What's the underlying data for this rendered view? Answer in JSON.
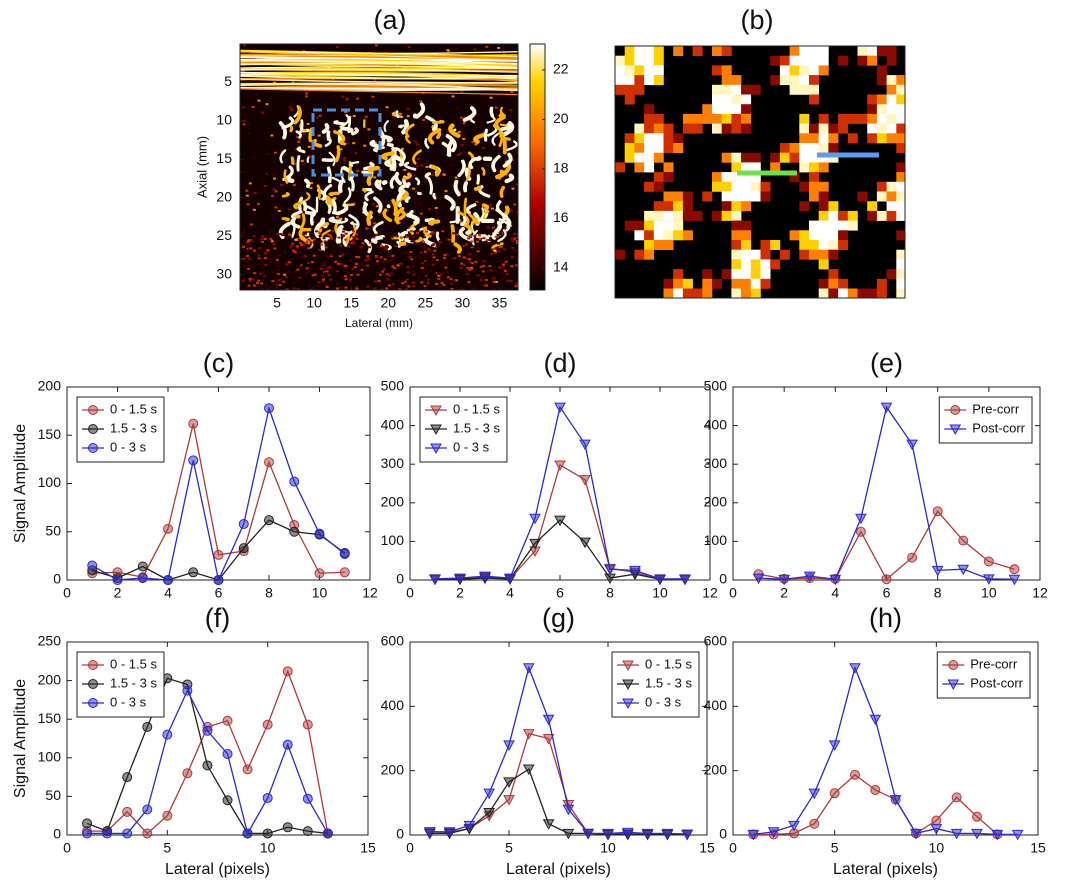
{
  "chart_data": [
    {
      "type": "image",
      "title": "(a)",
      "xlabel": "Lateral (mm)",
      "ylabel": "Axial (mm)",
      "xlim": [
        0,
        37.5
      ],
      "xticks": [
        5,
        10,
        15,
        20,
        25,
        30,
        35
      ],
      "ylim": [
        0,
        32
      ],
      "yticks": [
        5,
        10,
        15,
        20,
        25,
        30
      ],
      "colorbar": {
        "lim": [
          13.1,
          23.05
        ],
        "ticks": [
          14,
          16,
          18,
          20,
          22
        ]
      }
    },
    {
      "type": "image",
      "title": "(b)"
    },
    {
      "type": "line",
      "title": "(c)",
      "ylabel": "Signal Amplitude",
      "legend": "upper left",
      "xlim": [
        0,
        12
      ],
      "xticks": [
        0,
        2,
        4,
        6,
        8,
        10,
        12
      ],
      "ylim": [
        0,
        200
      ],
      "yticks": [
        0,
        50,
        100,
        150,
        200
      ],
      "series": [
        {
          "name": "0 - 1.5 s",
          "color": "#b03a3a",
          "marker": "circle",
          "x": [
            1,
            2,
            3,
            4,
            5,
            6,
            7,
            8,
            9,
            10,
            11
          ],
          "values": [
            7,
            8,
            3,
            53,
            162,
            26,
            30,
            122,
            57,
            7,
            8
          ]
        },
        {
          "name": "1.5 - 3 s",
          "color": "#222222",
          "marker": "circle",
          "x": [
            1,
            2,
            3,
            4,
            5,
            6,
            7,
            8,
            9,
            10,
            11
          ],
          "values": [
            10,
            2,
            14,
            0,
            8,
            0,
            33,
            62,
            50,
            47,
            28
          ]
        },
        {
          "name": "0 - 3 s",
          "color": "#2a2ad0",
          "marker": "circle",
          "x": [
            1,
            2,
            3,
            4,
            5,
            6,
            7,
            8,
            9,
            10,
            11
          ],
          "values": [
            15,
            0,
            2,
            0,
            124,
            0,
            58,
            178,
            102,
            48,
            27
          ]
        }
      ]
    },
    {
      "type": "line",
      "title": "(d)",
      "legend": "upper left",
      "xlim": [
        0,
        12
      ],
      "xticks": [
        0,
        2,
        4,
        6,
        8,
        10,
        12
      ],
      "ylim": [
        0,
        500
      ],
      "yticks": [
        0,
        100,
        200,
        300,
        400,
        500
      ],
      "series": [
        {
          "name": "0 - 1.5 s",
          "color": "#b03a3a",
          "marker": "triangle-down",
          "x": [
            1,
            2,
            3,
            4,
            5,
            6,
            7,
            8,
            9,
            10,
            11
          ],
          "values": [
            3,
            3,
            8,
            3,
            75,
            298,
            260,
            30,
            20,
            2,
            2
          ]
        },
        {
          "name": "1.5 - 3 s",
          "color": "#222222",
          "marker": "triangle-down",
          "x": [
            1,
            2,
            3,
            4,
            5,
            6,
            7,
            8,
            9,
            10,
            11
          ],
          "values": [
            2,
            2,
            5,
            3,
            95,
            155,
            98,
            5,
            15,
            2,
            2
          ]
        },
        {
          "name": "0 - 3 s",
          "color": "#2a2ad0",
          "marker": "triangle-down",
          "x": [
            1,
            2,
            3,
            4,
            5,
            6,
            7,
            8,
            9,
            10,
            11
          ],
          "values": [
            3,
            5,
            10,
            5,
            160,
            448,
            352,
            28,
            25,
            3,
            3
          ]
        }
      ]
    },
    {
      "type": "line",
      "title": "(e)",
      "legend": "upper right",
      "xlim": [
        0,
        12
      ],
      "xticks": [
        0,
        2,
        4,
        6,
        8,
        10,
        12
      ],
      "ylim": [
        0,
        500
      ],
      "yticks": [
        0,
        100,
        200,
        300,
        400,
        500
      ],
      "series": [
        {
          "name": "Pre-corr",
          "color": "#b03a3a",
          "marker": "circle",
          "x": [
            1,
            2,
            3,
            4,
            5,
            6,
            7,
            8,
            9,
            10,
            11
          ],
          "values": [
            15,
            3,
            5,
            3,
            125,
            2,
            58,
            178,
            102,
            48,
            28
          ]
        },
        {
          "name": "Post-corr",
          "color": "#2a2ad0",
          "marker": "triangle-down",
          "x": [
            1,
            2,
            3,
            4,
            5,
            6,
            7,
            8,
            9,
            10,
            11
          ],
          "values": [
            5,
            2,
            10,
            2,
            160,
            448,
            352,
            25,
            28,
            3,
            2
          ]
        }
      ]
    },
    {
      "type": "line",
      "title": "(f)",
      "ylabel": "Signal Amplitude",
      "xlabel": "Lateral (pixels)",
      "legend": "upper left",
      "xlim": [
        0,
        15
      ],
      "xticks": [
        0,
        5,
        10,
        15
      ],
      "ylim": [
        0,
        250
      ],
      "yticks": [
        0,
        50,
        100,
        150,
        200,
        250
      ],
      "series": [
        {
          "name": "0 - 1.5 s",
          "color": "#b03a3a",
          "marker": "circle",
          "x": [
            1,
            2,
            3,
            4,
            5,
            6,
            7,
            8,
            9,
            10,
            11,
            12,
            13
          ],
          "values": [
            5,
            5,
            30,
            2,
            25,
            80,
            140,
            148,
            85,
            143,
            212,
            143,
            2
          ]
        },
        {
          "name": "1.5 - 3 s",
          "color": "#222222",
          "marker": "circle",
          "x": [
            1,
            2,
            3,
            4,
            5,
            6,
            7,
            8,
            9,
            10,
            11,
            12,
            13
          ],
          "values": [
            15,
            5,
            75,
            140,
            203,
            195,
            90,
            45,
            2,
            2,
            10,
            5,
            2
          ]
        },
        {
          "name": "0 - 3 s",
          "color": "#2a2ad0",
          "marker": "circle",
          "x": [
            1,
            2,
            3,
            4,
            5,
            6,
            7,
            8,
            9,
            10,
            11,
            12,
            13
          ],
          "values": [
            2,
            2,
            2,
            33,
            130,
            187,
            135,
            105,
            2,
            48,
            117,
            47,
            2
          ]
        }
      ]
    },
    {
      "type": "line",
      "title": "(g)",
      "xlabel": "Lateral (pixels)",
      "legend": "upper right",
      "xlim": [
        0,
        15
      ],
      "xticks": [
        0,
        5,
        10,
        15
      ],
      "ylim": [
        0,
        600
      ],
      "yticks": [
        0,
        200,
        400,
        600
      ],
      "series": [
        {
          "name": "0 - 1.5 s",
          "color": "#b03a3a",
          "marker": "triangle-down",
          "x": [
            1,
            2,
            3,
            4,
            5,
            6,
            7,
            8,
            9,
            10,
            11,
            12,
            13,
            14
          ],
          "values": [
            10,
            8,
            20,
            60,
            110,
            315,
            300,
            95,
            5,
            2,
            3,
            2,
            2,
            2
          ]
        },
        {
          "name": "1.5 - 3 s",
          "color": "#222222",
          "marker": "triangle-down",
          "x": [
            1,
            2,
            3,
            4,
            5,
            6,
            7,
            8,
            9,
            10,
            11,
            12,
            13,
            14
          ],
          "values": [
            5,
            5,
            20,
            70,
            165,
            205,
            35,
            5,
            5,
            2,
            2,
            2,
            2,
            2
          ]
        },
        {
          "name": "0 - 3 s",
          "color": "#2a2ad0",
          "marker": "triangle-down",
          "x": [
            1,
            2,
            3,
            4,
            5,
            6,
            7,
            8,
            9,
            10,
            11,
            12,
            13,
            14
          ],
          "values": [
            10,
            10,
            30,
            130,
            280,
            520,
            360,
            80,
            5,
            5,
            8,
            5,
            5,
            3
          ]
        }
      ]
    },
    {
      "type": "line",
      "title": "(h)",
      "xlabel": "Lateral (pixels)",
      "legend": "upper right",
      "xlim": [
        0,
        15
      ],
      "xticks": [
        0,
        5,
        10,
        15
      ],
      "ylim": [
        0,
        600
      ],
      "yticks": [
        0,
        200,
        400,
        600
      ],
      "series": [
        {
          "name": "Pre-corr",
          "color": "#b03a3a",
          "marker": "circle",
          "x": [
            1,
            2,
            3,
            4,
            5,
            6,
            7,
            8,
            9,
            10,
            11,
            12,
            13
          ],
          "values": [
            2,
            2,
            5,
            35,
            130,
            187,
            140,
            110,
            5,
            45,
            117,
            57,
            2
          ]
        },
        {
          "name": "Post-corr",
          "color": "#2a2ad0",
          "marker": "triangle-down",
          "x": [
            1,
            2,
            3,
            4,
            5,
            6,
            7,
            8,
            9,
            10,
            11,
            12,
            13,
            14
          ],
          "values": [
            2,
            10,
            30,
            130,
            280,
            520,
            360,
            110,
            5,
            20,
            5,
            5,
            2,
            2
          ]
        }
      ]
    }
  ]
}
